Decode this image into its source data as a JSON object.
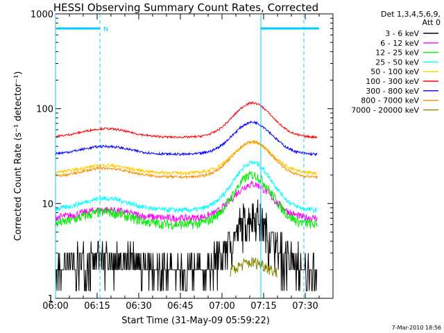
{
  "chart_data": {
    "type": "line",
    "title": "HESSI Observing Summary Count Rates, Corrected",
    "xlabel": "Start Time (31-May-09 05:59:22)",
    "ylabel": "Corrected Count Rate (s⁻¹ detector⁻¹)",
    "yscale": "log",
    "ylim": [
      1,
      1000
    ],
    "xlim_minutes": [
      0,
      100
    ],
    "x_ticks": [
      {
        "m": 0,
        "label": "06:00"
      },
      {
        "m": 15,
        "label": "06:15"
      },
      {
        "m": 30,
        "label": "06:30"
      },
      {
        "m": 45,
        "label": "06:45"
      },
      {
        "m": 60,
        "label": "07:00"
      },
      {
        "m": 75,
        "label": "07:15"
      },
      {
        "m": 90,
        "label": "07:30"
      }
    ],
    "y_ticks": [
      {
        "v": 1,
        "label": "1"
      },
      {
        "v": 10,
        "label": "10"
      },
      {
        "v": 100,
        "label": "100"
      },
      {
        "v": 1000,
        "label": "1000"
      }
    ],
    "legend": {
      "header1": "Det 1,3,4,5,6,9,",
      "header2": "Att 0",
      "placement": "right"
    },
    "series": [
      {
        "name": "3 - 6 keV",
        "color": "#000000",
        "base": 1.6,
        "peak": 7.2,
        "noise": 0.5
      },
      {
        "name": "6 - 12 keV",
        "color": "#ff00ff",
        "base": 7.0,
        "peak": 16,
        "noise": 0.09
      },
      {
        "name": "12 - 25 keV",
        "color": "#00ee00",
        "base": 6.0,
        "peak": 20,
        "noise": 0.12
      },
      {
        "name": "25 - 50 keV",
        "color": "#00ffff",
        "base": 8.5,
        "peak": 27,
        "noise": 0.06
      },
      {
        "name": "50 - 100 keV",
        "color": "#ffcc00",
        "base": 21,
        "peak": 44,
        "noise": 0.04
      },
      {
        "name": "100 - 300 keV",
        "color": "#ff0000",
        "base": 50,
        "peak": 115,
        "noise": 0.025
      },
      {
        "name": "300 - 800 keV",
        "color": "#0000ff",
        "base": 33,
        "peak": 72,
        "noise": 0.03
      },
      {
        "name": "800 - 7000 keV",
        "color": "#ff8800",
        "base": 19,
        "peak": 45,
        "noise": 0.03
      },
      {
        "name": "7000 - 20000 keV",
        "color": "#888800",
        "base": 1.5,
        "peak": 2.4,
        "noise": 0.15
      }
    ],
    "markers": {
      "saa_bar_color": "#00ccff",
      "saa_label": "N",
      "vertical_lines_minutes": [
        0,
        16,
        74,
        89.5
      ]
    },
    "timestamp": "7-Mar-2010 18:56"
  }
}
